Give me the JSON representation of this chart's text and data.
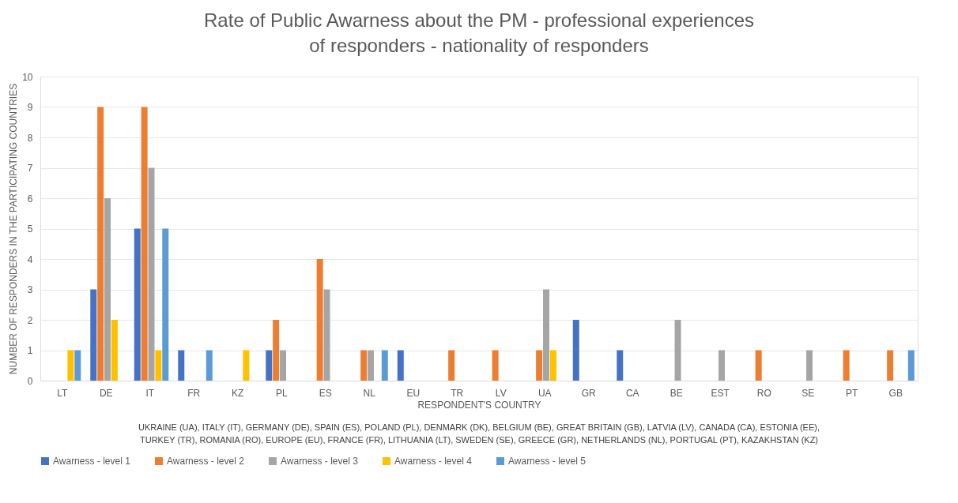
{
  "chart_data": {
    "type": "bar",
    "title": "Rate of Public Awarness about the PM - professional experiences\nof responders - nationality of responders",
    "xlabel": "RESPONDENT'S COUNTRY",
    "ylabel": "NUMBER OF RESPONDERS IN THE PARTICIPATING COUNTRIES",
    "categories": [
      "LT",
      "DE",
      "IT",
      "FR",
      "KZ",
      "PL",
      "ES",
      "NL",
      "EU",
      "TR",
      "LV",
      "UA",
      "GR",
      "CA",
      "BE",
      "EST",
      "RO",
      "SE",
      "PT",
      "GB"
    ],
    "series": [
      {
        "name": "Awarness - level 1",
        "color": "#4472c4",
        "values": [
          0,
          3,
          5,
          1,
          0,
          1,
          0,
          0,
          1,
          0,
          0,
          0,
          2,
          1,
          0,
          0,
          0,
          0,
          0,
          0
        ]
      },
      {
        "name": "Awarness - level 2",
        "color": "#ed7d31",
        "values": [
          0,
          9,
          9,
          0,
          0,
          2,
          4,
          1,
          0,
          1,
          1,
          1,
          0,
          0,
          0,
          0,
          1,
          0,
          1,
          1
        ]
      },
      {
        "name": "Awarness - level 3",
        "color": "#a5a5a5",
        "values": [
          0,
          6,
          7,
          0,
          0,
          1,
          3,
          1,
          0,
          0,
          0,
          3,
          0,
          0,
          2,
          1,
          0,
          1,
          0,
          0
        ]
      },
      {
        "name": "Awarness - level 4",
        "color": "#ffc000",
        "values": [
          1,
          2,
          1,
          0,
          1,
          0,
          0,
          0,
          0,
          0,
          0,
          1,
          0,
          0,
          0,
          0,
          0,
          0,
          0,
          0
        ]
      },
      {
        "name": "Awarness - level 5",
        "color": "#5b9bd5",
        "values": [
          1,
          0,
          5,
          1,
          0,
          0,
          0,
          1,
          0,
          0,
          0,
          0,
          0,
          0,
          0,
          0,
          0,
          0,
          0,
          1
        ]
      }
    ],
    "ylim": [
      0,
      10
    ],
    "yticks": [
      0,
      1,
      2,
      3,
      4,
      5,
      6,
      7,
      8,
      9,
      10
    ],
    "grid": "y",
    "legend": "bottom",
    "annotations": [
      "UKRAINE (UA), ITALY (IT), GERMANY (DE), SPAIN (ES), POLAND (PL), DENMARK (DK), BELGIUM (BE), GREAT BRITAIN (GB), LATVIA (LV), CANADA (CA), ESTONIA (EE),",
      "TURKEY (TR), ROMANIA (RO), EUROPE (EU), FRANCE (FR), LITHUANIA (LT), SWEDEN (SE), GREECE (GR), NETHERLANDS (NL), PORTUGAL (PT),  KAZAKHSTAN (KZ)"
    ]
  }
}
